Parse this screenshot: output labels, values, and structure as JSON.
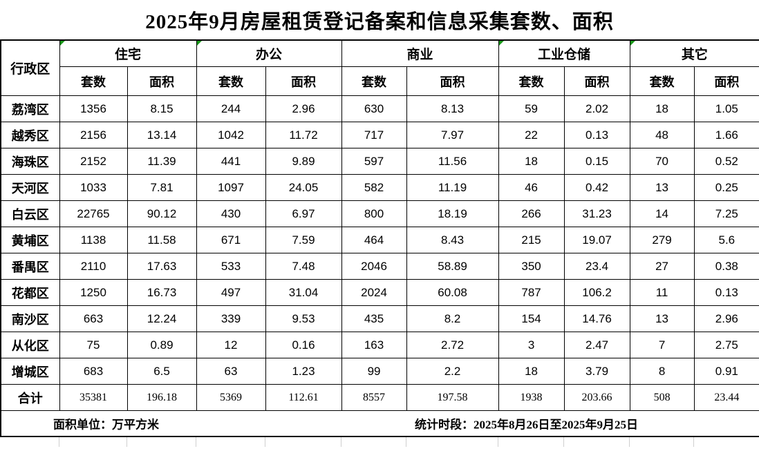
{
  "title": "2025年9月房屋租赁登记备案和信息采集套数、面积",
  "table": {
    "corner_label": "行政区",
    "groups": [
      {
        "label": "住宅",
        "marker": true
      },
      {
        "label": "办公",
        "marker": true
      },
      {
        "label": "商业",
        "marker": false
      },
      {
        "label": "工业仓储",
        "marker": true
      },
      {
        "label": "其它",
        "marker": true
      }
    ],
    "sub_headers": [
      "套数",
      "面积"
    ],
    "rows": [
      {
        "district": "荔湾区",
        "values": [
          "1356",
          "8.15",
          "244",
          "2.96",
          "630",
          "8.13",
          "59",
          "2.02",
          "18",
          "1.05"
        ]
      },
      {
        "district": "越秀区",
        "values": [
          "2156",
          "13.14",
          "1042",
          "11.72",
          "717",
          "7.97",
          "22",
          "0.13",
          "48",
          "1.66"
        ]
      },
      {
        "district": "海珠区",
        "values": [
          "2152",
          "11.39",
          "441",
          "9.89",
          "597",
          "11.56",
          "18",
          "0.15",
          "70",
          "0.52"
        ]
      },
      {
        "district": "天河区",
        "values": [
          "1033",
          "7.81",
          "1097",
          "24.05",
          "582",
          "11.19",
          "46",
          "0.42",
          "13",
          "0.25"
        ]
      },
      {
        "district": "白云区",
        "values": [
          "22765",
          "90.12",
          "430",
          "6.97",
          "800",
          "18.19",
          "266",
          "31.23",
          "14",
          "7.25"
        ]
      },
      {
        "district": "黄埔区",
        "values": [
          "1138",
          "11.58",
          "671",
          "7.59",
          "464",
          "8.43",
          "215",
          "19.07",
          "279",
          "5.6"
        ]
      },
      {
        "district": "番禺区",
        "values": [
          "2110",
          "17.63",
          "533",
          "7.48",
          "2046",
          "58.89",
          "350",
          "23.4",
          "27",
          "0.38"
        ]
      },
      {
        "district": "花都区",
        "values": [
          "1250",
          "16.73",
          "497",
          "31.04",
          "2024",
          "60.08",
          "787",
          "106.2",
          "11",
          "0.13"
        ]
      },
      {
        "district": "南沙区",
        "values": [
          "663",
          "12.24",
          "339",
          "9.53",
          "435",
          "8.2",
          "154",
          "14.76",
          "13",
          "2.96"
        ]
      },
      {
        "district": "从化区",
        "values": [
          "75",
          "0.89",
          "12",
          "0.16",
          "163",
          "2.72",
          "3",
          "2.47",
          "7",
          "2.75"
        ]
      },
      {
        "district": "增城区",
        "values": [
          "683",
          "6.5",
          "63",
          "1.23",
          "99",
          "2.2",
          "18",
          "3.79",
          "8",
          "0.91"
        ]
      }
    ],
    "total": {
      "district": "合计",
      "values": [
        "35381",
        "196.18",
        "5369",
        "112.61",
        "8557",
        "197.58",
        "1938",
        "203.66",
        "508",
        "23.44"
      ]
    }
  },
  "footer": {
    "unit_note": "面积单位：万平方米",
    "period_note": "统计时段：2025年8月26日至2025年9月25日"
  },
  "colors": {
    "marker_green": "#169616",
    "border_black": "#000000",
    "faint_grid": "#cfcfcf"
  }
}
